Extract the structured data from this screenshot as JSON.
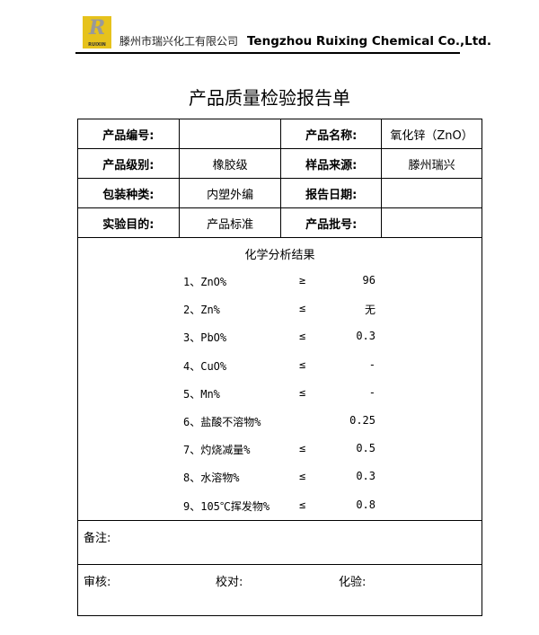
{
  "header": {
    "logo_text": "RUIXIN",
    "company_cn": "滕州市瑞兴化工有限公司",
    "company_en": "Tengzhou Ruixing Chemical Co.,Ltd."
  },
  "title": "产品质量检验报告单",
  "info": [
    {
      "l1": "产品编号:",
      "v1": "",
      "l2": "产品名称:",
      "v2": "氧化锌（ZnO）"
    },
    {
      "l1": "产品级别:",
      "v1": "橡胶级",
      "l2": "样品来源:",
      "v2": "滕州瑞兴"
    },
    {
      "l1": "包装种类:",
      "v1": "内塑外编",
      "l2": "报告日期:",
      "v2": ""
    },
    {
      "l1": "实验目的:",
      "v1": "产品标准",
      "l2": "产品批号:",
      "v2": ""
    }
  ],
  "results": {
    "title": "化学分析结果",
    "items": [
      {
        "name": "1、ZnO%",
        "op": "≥",
        "value": "96"
      },
      {
        "name": "2、Zn%",
        "op": "≤",
        "value": "无"
      },
      {
        "name": "3、PbO%",
        "op": "≤",
        "value": "0.3"
      },
      {
        "name": "4、CuO%",
        "op": "≤",
        "value": "-"
      },
      {
        "name": "5、Mn%",
        "op": "≤",
        "value": "-"
      },
      {
        "name": "6、盐酸不溶物%",
        "op": "",
        "value": "0.25"
      },
      {
        "name": "7、灼烧减量%",
        "op": "≤",
        "value": "0.5"
      },
      {
        "name": "8、水溶物%",
        "op": "≤",
        "value": "0.3"
      },
      {
        "name": "9、105℃挥发物%",
        "op": "≤",
        "value": "0.8"
      }
    ]
  },
  "remarks_label": "备注:",
  "signs": {
    "review": "审核:",
    "check": "校对:",
    "test": "化验:"
  }
}
